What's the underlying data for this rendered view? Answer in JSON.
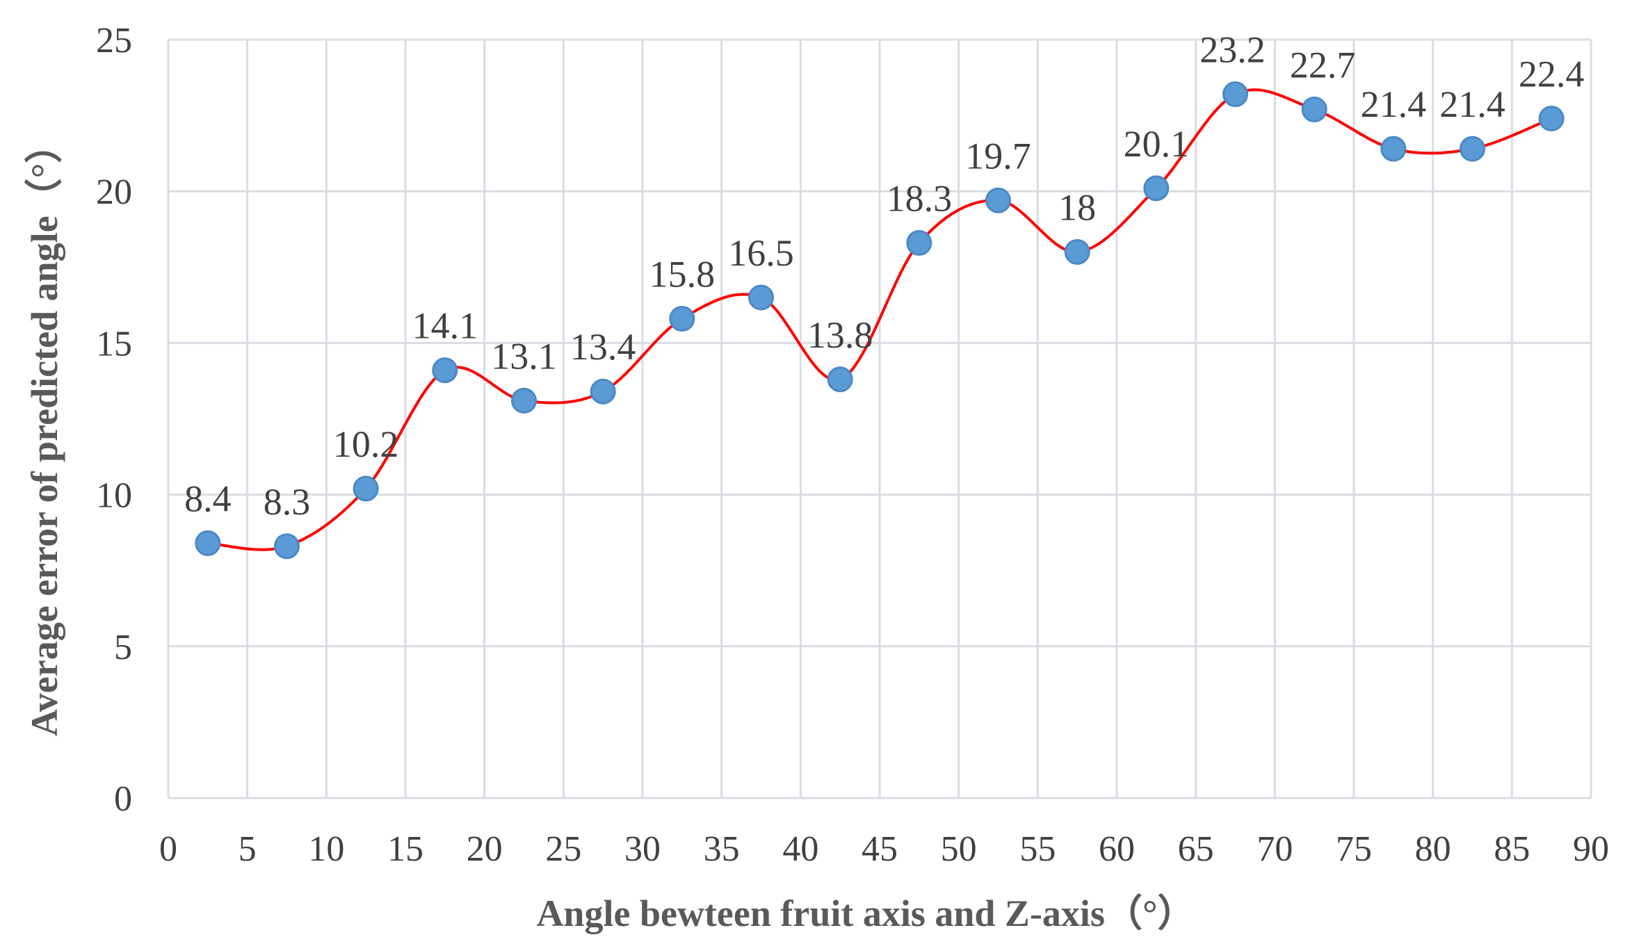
{
  "chart_data": {
    "type": "line",
    "title": "",
    "xlabel": "Angle bewteen fruit axis and Z-axis（°）",
    "ylabel": "Average error of predicted angle（°）",
    "xlim": [
      0,
      90
    ],
    "ylim": [
      0,
      25
    ],
    "x_ticks": [
      "0",
      "5",
      "10",
      "15",
      "20",
      "25",
      "30",
      "35",
      "40",
      "45",
      "50",
      "55",
      "60",
      "65",
      "70",
      "75",
      "80",
      "85",
      "90"
    ],
    "y_ticks": [
      "0",
      "5",
      "10",
      "15",
      "20",
      "25"
    ],
    "grid": true,
    "smooth": true,
    "series": [
      {
        "x": [
          2.5,
          7.5,
          12.5,
          17.5,
          22.5,
          27.5,
          32.5,
          37.5,
          42.5,
          47.5,
          52.5,
          57.5,
          62.5,
          67.5,
          72.5,
          77.5,
          82.5,
          87.5
        ],
        "values": [
          8.4,
          8.3,
          10.2,
          14.1,
          13.1,
          13.4,
          15.8,
          16.5,
          13.8,
          18.3,
          19.7,
          18,
          20.1,
          23.2,
          22.7,
          21.4,
          21.4,
          22.4
        ],
        "labels": [
          "8.4",
          "8.3",
          "10.2",
          "14.1",
          "13.1",
          "13.4",
          "15.8",
          "16.5",
          "13.8",
          "18.3",
          "19.7",
          "18",
          "20.1",
          "23.2",
          "22.7",
          "21.4",
          "21.4",
          "22.4"
        ]
      }
    ],
    "colors": {
      "line": "#ff0000",
      "marker_fill": "#5b9bd5",
      "marker_stroke": "#4a88c4",
      "grid": "#d9dde3"
    }
  }
}
